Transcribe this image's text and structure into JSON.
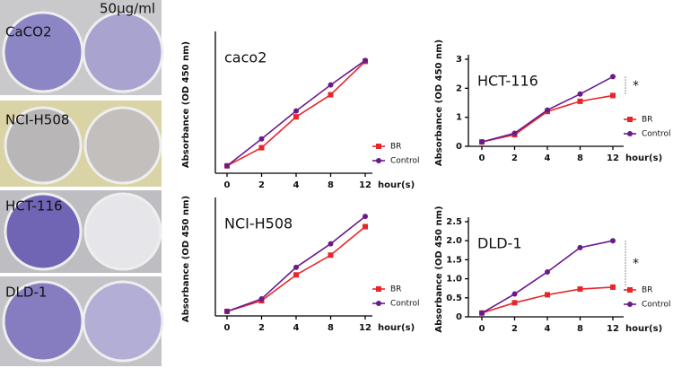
{
  "photo_panel": {
    "header": "50μg/ml",
    "rows": [
      "CaCO2",
      "NCI-H508",
      "HCT-116",
      "DLD-1"
    ]
  },
  "chart_data": [
    {
      "type": "line",
      "title": "caco2",
      "x_label": "hour(s)",
      "y_label": "Absorbance (OD 450 nm)",
      "categories": [
        0,
        2,
        4,
        8,
        12
      ],
      "ylim": [
        0,
        2.8
      ],
      "legend": "lower right",
      "series": [
        {
          "name": "BR",
          "color": "#e8262a",
          "values": [
            0.15,
            0.52,
            1.15,
            1.6,
            2.28
          ]
        },
        {
          "name": "Control",
          "color": "#6a1b8a",
          "values": [
            0.15,
            0.7,
            1.27,
            1.8,
            2.3
          ]
        }
      ]
    },
    {
      "type": "line",
      "title": "HCT-116",
      "x_label": "hour(s)",
      "y_label": "Absorbance (OD 450 nm)",
      "categories": [
        0,
        2,
        4,
        8,
        12
      ],
      "ylim": [
        0,
        3
      ],
      "yticks": [
        0,
        1,
        2,
        3
      ],
      "legend": "lower right",
      "annotation": "*",
      "series": [
        {
          "name": "BR",
          "color": "#e8262a",
          "values": [
            0.15,
            0.4,
            1.2,
            1.55,
            1.75
          ]
        },
        {
          "name": "Control",
          "color": "#6a1b8a",
          "values": [
            0.15,
            0.45,
            1.25,
            1.8,
            2.4
          ]
        }
      ]
    },
    {
      "type": "line",
      "title": "NCI-H508",
      "x_label": "hour(s)",
      "y_label": "Absorbance (OD 450 nm)",
      "categories": [
        0,
        2,
        4,
        8,
        12
      ],
      "ylim": [
        0,
        3
      ],
      "legend": "lower right",
      "series": [
        {
          "name": "BR",
          "color": "#e8262a",
          "values": [
            0.12,
            0.4,
            1.08,
            1.6,
            2.35
          ]
        },
        {
          "name": "Control",
          "color": "#6a1b8a",
          "values": [
            0.12,
            0.45,
            1.28,
            1.9,
            2.62
          ]
        }
      ]
    },
    {
      "type": "line",
      "title": "DLD-1",
      "x_label": "hour(s)",
      "y_label": "Absorbance (OD 450 nm)",
      "categories": [
        0,
        2,
        4,
        8,
        12
      ],
      "ylim": [
        0,
        2.5
      ],
      "yticks": [
        0,
        0.5,
        {
          "value": 1,
          "label": "1.0"
        },
        1.5,
        {
          "value": 2,
          "label": "2.0"
        },
        2.5
      ],
      "legend": "lower right",
      "annotation": "*",
      "series": [
        {
          "name": "BR",
          "color": "#e8262a",
          "values": [
            0.1,
            0.37,
            0.58,
            0.73,
            0.78
          ]
        },
        {
          "name": "Control",
          "color": "#6a1b8a",
          "values": [
            0.1,
            0.6,
            1.18,
            1.82,
            2.0
          ]
        }
      ]
    }
  ]
}
